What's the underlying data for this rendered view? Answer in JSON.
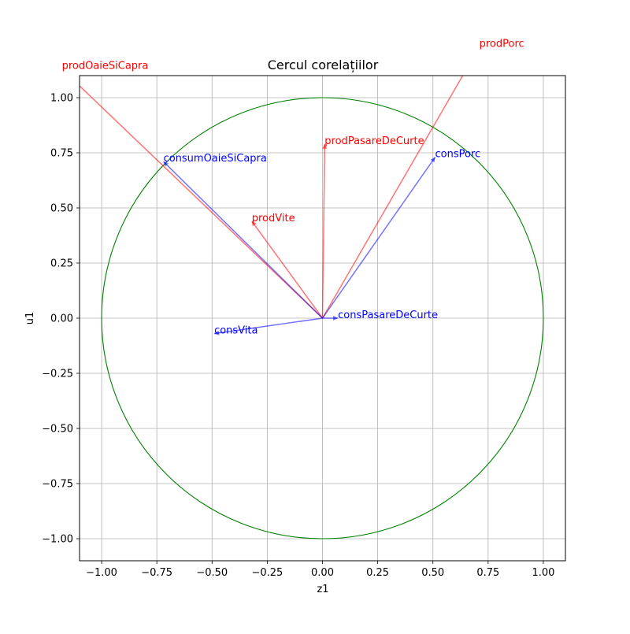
{
  "chart_data": {
    "type": "scatter",
    "title": "Cercul corelațiilor",
    "xlabel": "z1",
    "ylabel": "u1",
    "xlim": [
      -1.1,
      1.1
    ],
    "ylim": [
      -1.1,
      1.1
    ],
    "grid": true,
    "xticks": [
      -1.0,
      -0.75,
      -0.5,
      -0.25,
      0.0,
      0.25,
      0.5,
      0.75,
      1.0
    ],
    "yticks": [
      -1.0,
      -0.75,
      -0.5,
      -0.25,
      0.0,
      0.25,
      0.5,
      0.75,
      1.0
    ],
    "xtick_labels": [
      "−1.00",
      "−0.75",
      "−0.50",
      "−0.25",
      "0.00",
      "0.25",
      "0.50",
      "0.75",
      "1.00"
    ],
    "ytick_labels": [
      "−1.00",
      "−0.75",
      "−0.50",
      "−0.25",
      "0.00",
      "0.25",
      "0.50",
      "0.75",
      "1.00"
    ],
    "circle": {
      "center": [
        0,
        0
      ],
      "radius": 1.0,
      "color": "#008000"
    },
    "series": [
      {
        "group": "x",
        "color": "#ff0000",
        "vectors": [
          {
            "name": "prodOaieSiCapra",
            "x": -1.18,
            "y": 1.13
          },
          {
            "name": "prodPorc",
            "x": 0.71,
            "y": 1.23
          },
          {
            "name": "prodPasareDeCurte",
            "x": 0.01,
            "y": 0.79
          },
          {
            "name": "prodVite",
            "x": -0.32,
            "y": 0.44
          }
        ]
      },
      {
        "group": "y",
        "color": "#0000ff",
        "vectors": [
          {
            "name": "consumOaieSiCapra",
            "x": -0.72,
            "y": 0.71
          },
          {
            "name": "consPorc",
            "x": 0.51,
            "y": 0.73
          },
          {
            "name": "consPasareDeCurte",
            "x": 0.07,
            "y": 0.0
          },
          {
            "name": "consVita",
            "x": -0.49,
            "y": -0.07
          }
        ]
      }
    ]
  }
}
